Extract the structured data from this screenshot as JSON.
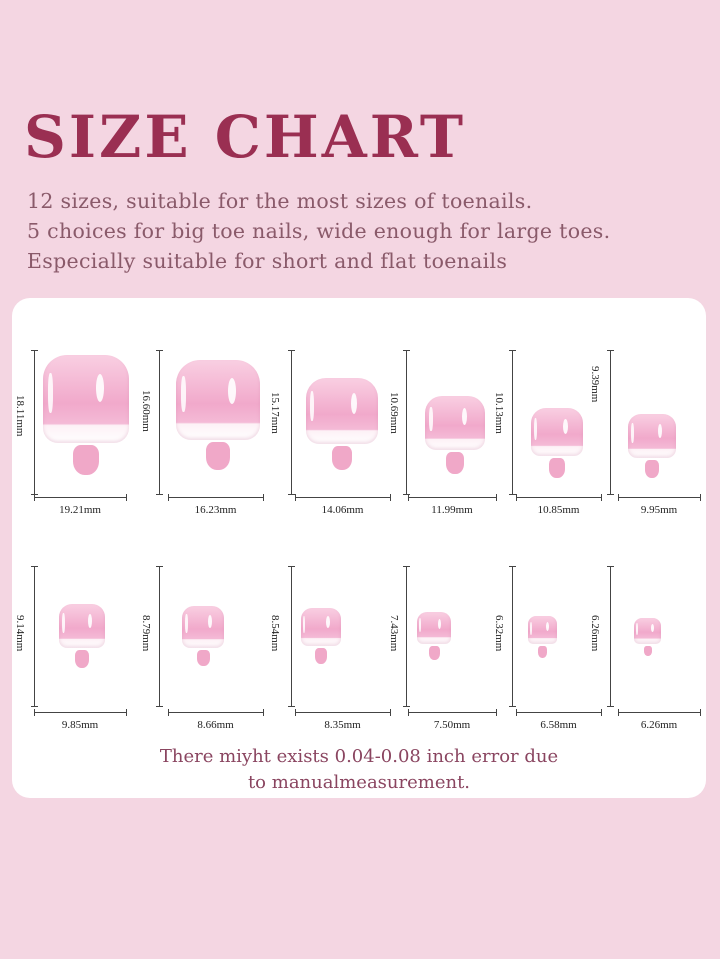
{
  "header": {
    "title": "SIZE CHART",
    "lines": [
      "12 sizes, suitable for the most sizes of toenails.",
      "5 choices for big toe nails, wide enough for large toes.",
      "Especially suitable for short and flat toenails"
    ]
  },
  "sizes": [
    {
      "height": "18.11mm",
      "width": "19.21mm"
    },
    {
      "height": "16.60mm",
      "width": "16.23mm"
    },
    {
      "height": "15.17mm",
      "width": "14.06mm"
    },
    {
      "height": "10.69mm",
      "width": "11.99mm"
    },
    {
      "height": "10.13mm",
      "width": "10.85mm"
    },
    {
      "height": "9.39mm",
      "width": "9.95mm"
    },
    {
      "height": "9.14mm",
      "width": "9.85mm"
    },
    {
      "height": "8.79mm",
      "width": "8.66mm"
    },
    {
      "height": "8.54mm",
      "width": "8.35mm"
    },
    {
      "height": "7.43mm",
      "width": "7.50mm"
    },
    {
      "height": "6.32mm",
      "width": "6.58mm"
    },
    {
      "height": "6.26mm",
      "width": "6.26mm"
    }
  ],
  "note": {
    "line1": "There miyht exists 0.04-0.08 inch error due",
    "line2": "to manualmeasurement."
  },
  "colors": {
    "background": "#f4d6e2",
    "title": "#9a2f52",
    "nail_pink": "#f1a9cb"
  }
}
